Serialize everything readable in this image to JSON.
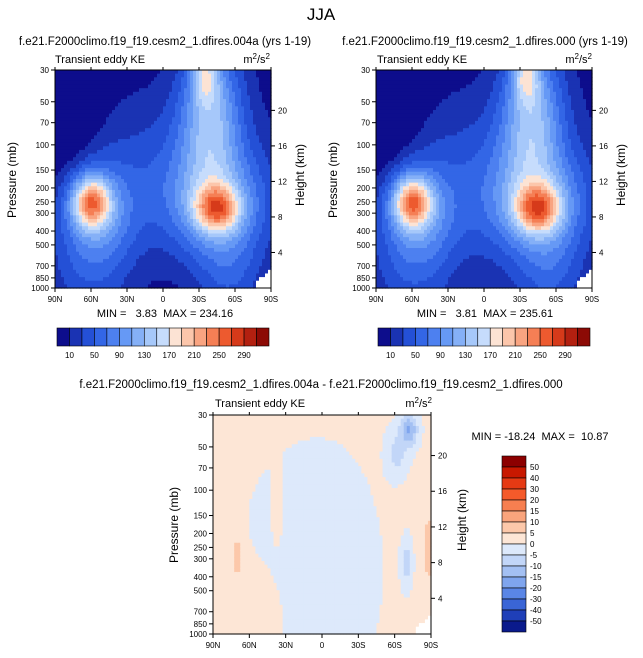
{
  "page_title": "JJA",
  "chart_data": [
    {
      "type": "heatmap",
      "title": "f.e21.F2000climo.f19_f19.cesm2_1.dfires.004a (yrs 1-19)",
      "subtitle": "Transient eddy KE",
      "units": "m²/s²",
      "ylabel": "Pressure (mb)",
      "y2label": "Height (km)",
      "x_ticks": [
        "90N",
        "60N",
        "30N",
        "0",
        "30S",
        "60S",
        "90S"
      ],
      "y_ticks": [
        "30",
        "50",
        "70",
        "100",
        "150",
        "200",
        "250",
        "300",
        "400",
        "500",
        "700",
        "850",
        "1000"
      ],
      "y2_ticks": [
        "20",
        "16",
        "12",
        "8",
        "4"
      ],
      "stats": "MIN =   3.83  MAX = 234.16",
      "colorbar_labels": [
        "10",
        "50",
        "90",
        "130",
        "170",
        "210",
        "250",
        "290"
      ],
      "features": [
        {
          "lat": 60,
          "p": 250,
          "peak": 170
        },
        {
          "lat": -45,
          "p": 280,
          "peak": 234.16
        },
        {
          "lat": -35,
          "p": 32,
          "peak": 140
        }
      ]
    },
    {
      "type": "heatmap",
      "title": "f.e21.F2000climo.f19_f19.cesm2_1.dfires.000 (yrs 1-19)",
      "subtitle": "Transient eddy KE",
      "units": "m²/s²",
      "ylabel": "Pressure (mb)",
      "y2label": "Height (km)",
      "x_ticks": [
        "90N",
        "60N",
        "30N",
        "0",
        "30S",
        "60S",
        "90S"
      ],
      "y_ticks": [
        "30",
        "50",
        "70",
        "100",
        "150",
        "200",
        "250",
        "300",
        "400",
        "500",
        "700",
        "850",
        "1000"
      ],
      "y2_ticks": [
        "20",
        "16",
        "12",
        "8",
        "4"
      ],
      "stats": "MIN =   3.81  MAX = 235.61",
      "colorbar_labels": [
        "10",
        "50",
        "90",
        "130",
        "170",
        "210",
        "250",
        "290"
      ],
      "features": [
        {
          "lat": 60,
          "p": 250,
          "peak": 172
        },
        {
          "lat": -45,
          "p": 280,
          "peak": 235.61
        },
        {
          "lat": -35,
          "p": 32,
          "peak": 145
        }
      ]
    },
    {
      "type": "heatmap",
      "title": "f.e21.F2000climo.f19_f19.cesm2_1.dfires.004a - f.e21.F2000climo.f19_f19.cesm2_1.dfires.000",
      "subtitle": "Transient eddy KE",
      "units": "m²/s²",
      "ylabel": "Pressure (mb)",
      "y2label": "Height (km)",
      "x_ticks": [
        "90N",
        "60N",
        "30N",
        "0",
        "30S",
        "60S",
        "90S"
      ],
      "y_ticks": [
        "30",
        "50",
        "70",
        "100",
        "150",
        "200",
        "250",
        "300",
        "400",
        "500",
        "700",
        "850",
        "1000"
      ],
      "y2_ticks": [
        "20",
        "16",
        "12",
        "8",
        "4"
      ],
      "stats": "MIN = -18.24  MAX =  10.87",
      "colorbar_labels": [
        "50",
        "40",
        "30",
        "20",
        "15",
        "10",
        "5",
        "0",
        "-5",
        "-10",
        "-15",
        "-20",
        "-30",
        "-40",
        "-50"
      ]
    }
  ],
  "colors": {
    "ke_colorbar": [
      "#0d0d8c",
      "#1a33b3",
      "#2450d6",
      "#3366e6",
      "#4d80f0",
      "#6699f5",
      "#85b0f7",
      "#a6c8fa",
      "#c6dcfc",
      "#fce3d4",
      "#fcc6ab",
      "#f9a481",
      "#f57f55",
      "#ed5a2f",
      "#d63a1a",
      "#b32010",
      "#8c0a05"
    ],
    "diff_colorbar": [
      "#8c0000",
      "#c81800",
      "#e63a14",
      "#f55a2a",
      "#f77f50",
      "#f9a47c",
      "#fcc8aa",
      "#fde6d6",
      "#dde9fb",
      "#c2d6f8",
      "#a3c0f3",
      "#7fa5ee",
      "#5a86e6",
      "#3a65d6",
      "#1f3fb8",
      "#0a1a8c"
    ]
  }
}
